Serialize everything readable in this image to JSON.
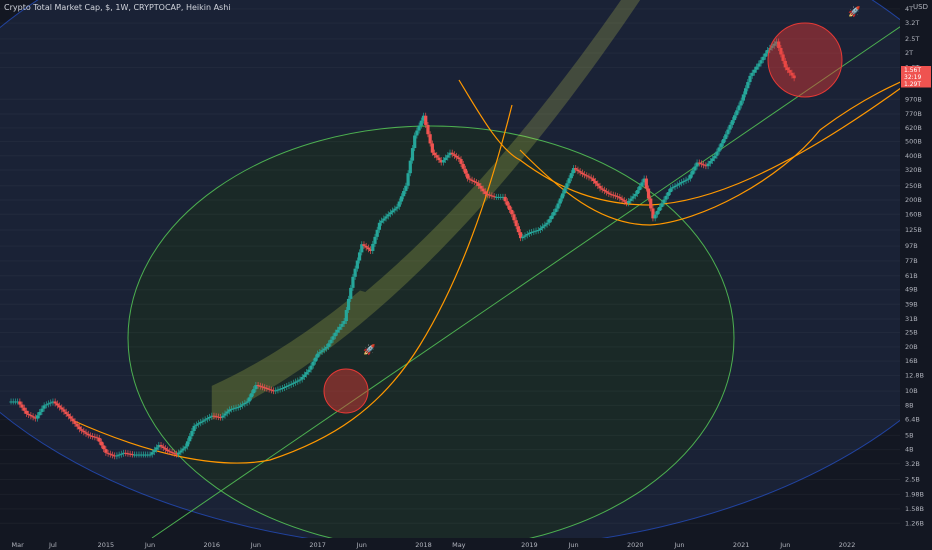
{
  "header": {
    "symbol_line": "Crypto Total Market Cap, $, 1W, CRYPTOCAP, Heikin Ashi",
    "currency": "USD"
  },
  "colors": {
    "background": "#131722",
    "up_candle": "#26a69a",
    "down_candle": "#ef5350",
    "ellipse_blue": "#2962ff",
    "ellipse_green": "#4caf50",
    "curve_orange": "#ff9800",
    "channel_fill": "#d4e157",
    "highlight_red": "#e53935",
    "rocket_green": "#4caf50"
  },
  "chart_data": {
    "type": "candlestick",
    "style": "Heikin Ashi",
    "interval": "1W",
    "y_scale": "log",
    "y_unit": "USD",
    "x_ticks": [
      "Mar",
      "Jul",
      "2015",
      "Jun",
      "2016",
      "Jun",
      "2017",
      "Jun",
      "2018",
      "May",
      "2019",
      "Jun",
      "2020",
      "Jun",
      "2021",
      "Jun",
      "2022"
    ],
    "y_ticks": [
      "4T",
      "3.2T",
      "2.5T",
      "2T",
      "1.6T",
      "970B",
      "770B",
      "620B",
      "500B",
      "400B",
      "320B",
      "250B",
      "200B",
      "160B",
      "125B",
      "97B",
      "77B",
      "61B",
      "49B",
      "39B",
      "31B",
      "25B",
      "20B",
      "16B",
      "12.8B",
      "10B",
      "8B",
      "6.4B",
      "5B",
      "4B",
      "3.2B",
      "2.5B",
      "1.98B",
      "1.58B",
      "1.26B"
    ],
    "price_badges": [
      "1.56T",
      "32:19",
      "1.29T"
    ],
    "series": [
      {
        "points": [
          [
            "2014-03",
            8.5
          ],
          [
            "2014-04",
            7.0
          ],
          [
            "2014-05",
            6.5
          ],
          [
            "2014-06",
            8.0
          ],
          [
            "2014-07",
            8.5
          ],
          [
            "2014-08",
            7.5
          ],
          [
            "2014-09",
            6.5
          ],
          [
            "2014-10",
            5.5
          ],
          [
            "2014-11",
            5.0
          ],
          [
            "2014-12",
            4.8
          ],
          [
            "2015-01",
            3.8
          ],
          [
            "2015-02",
            3.6
          ],
          [
            "2015-03",
            3.8
          ],
          [
            "2015-04",
            3.7
          ],
          [
            "2015-05",
            3.7
          ],
          [
            "2015-06",
            3.7
          ],
          [
            "2015-07",
            4.3
          ],
          [
            "2015-08",
            3.9
          ],
          [
            "2015-09",
            3.7
          ],
          [
            "2015-10",
            4.2
          ],
          [
            "2015-11",
            5.8
          ],
          [
            "2015-12",
            6.3
          ],
          [
            "2016-01",
            6.8
          ],
          [
            "2016-02",
            6.6
          ],
          [
            "2016-03",
            7.5
          ],
          [
            "2016-04",
            7.8
          ],
          [
            "2016-05",
            8.5
          ],
          [
            "2016-06",
            11.0
          ],
          [
            "2016-07",
            10.5
          ],
          [
            "2016-08",
            10.0
          ],
          [
            "2016-09",
            10.5
          ],
          [
            "2016-10",
            11.2
          ],
          [
            "2016-11",
            12.0
          ],
          [
            "2016-12",
            14.0
          ],
          [
            "2017-01",
            18.0
          ],
          [
            "2017-02",
            20.0
          ],
          [
            "2017-03",
            25.0
          ],
          [
            "2017-04",
            30.0
          ],
          [
            "2017-05",
            60.0
          ],
          [
            "2017-06",
            100.0
          ],
          [
            "2017-07",
            90.0
          ],
          [
            "2017-08",
            140.0
          ],
          [
            "2017-09",
            160.0
          ],
          [
            "2017-10",
            180.0
          ],
          [
            "2017-11",
            250.0
          ],
          [
            "2017-12",
            550.0
          ],
          [
            "2018-01",
            750.0
          ],
          [
            "2018-02",
            420.0
          ],
          [
            "2018-03",
            360.0
          ],
          [
            "2018-04",
            420.0
          ],
          [
            "2018-05",
            380.0
          ],
          [
            "2018-06",
            280.0
          ],
          [
            "2018-07",
            260.0
          ],
          [
            "2018-08",
            220.0
          ],
          [
            "2018-09",
            210.0
          ],
          [
            "2018-10",
            210.0
          ],
          [
            "2018-11",
            160.0
          ],
          [
            "2018-12",
            110.0
          ],
          [
            "2019-01",
            120.0
          ],
          [
            "2019-02",
            125.0
          ],
          [
            "2019-03",
            140.0
          ],
          [
            "2019-04",
            175.0
          ],
          [
            "2019-05",
            240.0
          ],
          [
            "2019-06",
            330.0
          ],
          [
            "2019-07",
            300.0
          ],
          [
            "2019-08",
            280.0
          ],
          [
            "2019-09",
            240.0
          ],
          [
            "2019-10",
            220.0
          ],
          [
            "2019-11",
            210.0
          ],
          [
            "2019-12",
            190.0
          ],
          [
            "2020-01",
            220.0
          ],
          [
            "2020-02",
            280.0
          ],
          [
            "2020-03",
            150.0
          ],
          [
            "2020-04",
            190.0
          ],
          [
            "2020-05",
            240.0
          ],
          [
            "2020-06",
            260.0
          ],
          [
            "2020-07",
            280.0
          ],
          [
            "2020-08",
            360.0
          ],
          [
            "2020-09",
            340.0
          ],
          [
            "2020-10",
            400.0
          ],
          [
            "2020-11",
            520.0
          ],
          [
            "2020-12",
            700.0
          ],
          [
            "2021-01",
            950.0
          ],
          [
            "2021-02",
            1400.0
          ],
          [
            "2021-03",
            1700.0
          ],
          [
            "2021-04",
            2100.0
          ],
          [
            "2021-05",
            2400.0
          ],
          [
            "2021-06",
            1600.0
          ],
          [
            "2021-07",
            1350.0
          ]
        ]
      }
    ],
    "x_range": [
      "2014-01",
      "2022-07"
    ],
    "y_range": [
      1.0,
      4600.0
    ]
  }
}
